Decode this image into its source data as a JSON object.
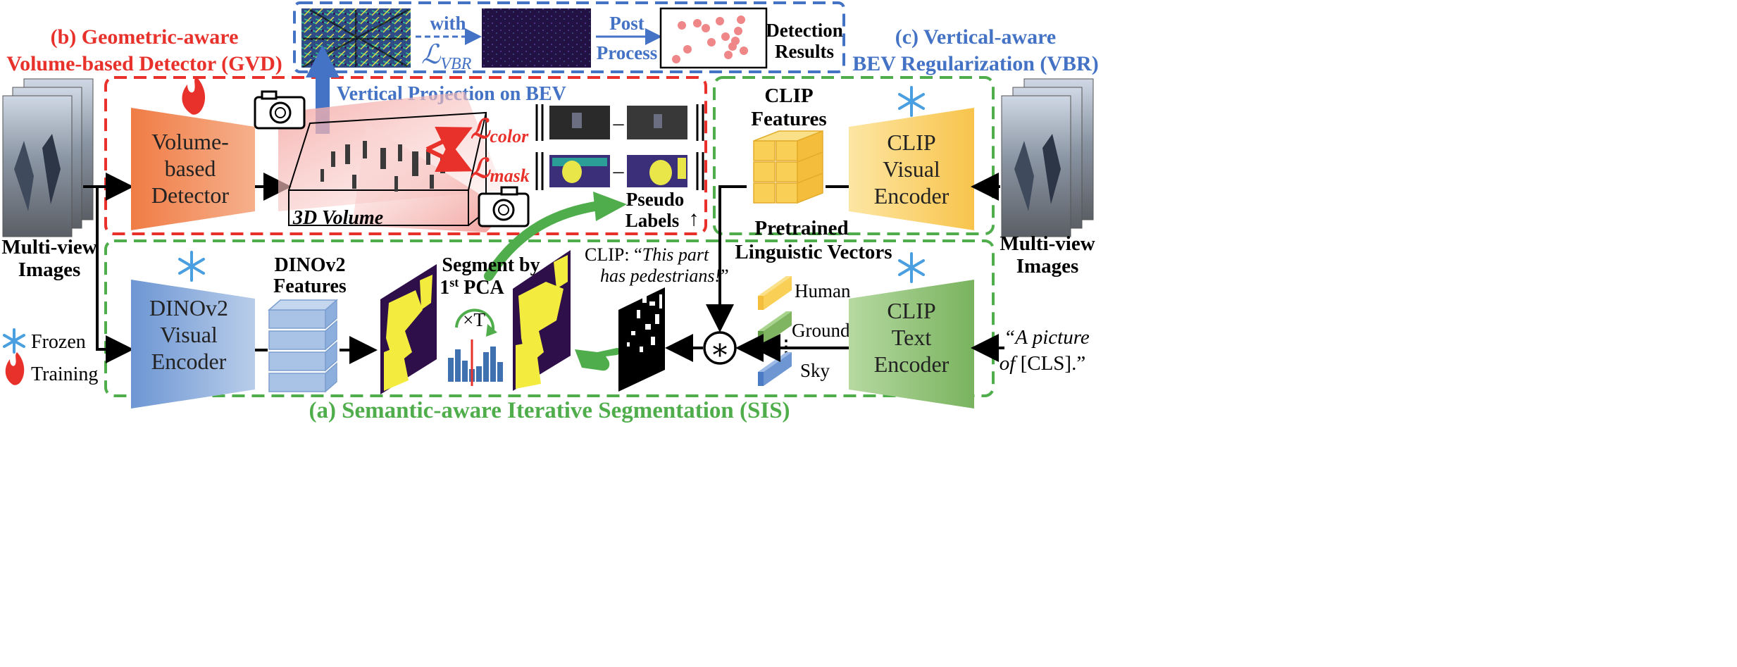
{
  "sections": {
    "gvd_title_line1": "(b) Geometric-aware",
    "gvd_title_line2": "Volume-based Detector (GVD)",
    "vbr_title_line1": "(c) Vertical-aware",
    "vbr_title_line2": "BEV Regularization (VBR)",
    "sis_title": "(a) Semantic-aware Iterative Segmentation (SIS)"
  },
  "top_pipeline": {
    "with_label": "with",
    "loss_vbr_symbol": "ℒ",
    "loss_vbr_sub": "VBR",
    "post_label": "Post",
    "process_label": "Process",
    "detection_line1": "Detection",
    "detection_line2": "Results",
    "vertical_projection": "Vertical Projection on BEV"
  },
  "gvd": {
    "detector_line1": "Volume-",
    "detector_line2": "based",
    "detector_line3": "Detector",
    "volume_label": "3D Volume",
    "loss_color_symbol": "ℒ",
    "loss_color_sub": "color",
    "loss_mask_symbol": "ℒ",
    "loss_mask_sub": "mask",
    "minus": "–",
    "pseudo_line1": "Pseudo",
    "pseudo_line2": "Labels",
    "up_arrow": "↑"
  },
  "inputs": {
    "left_line1": "Multi-view",
    "left_line2": "Images",
    "right_line1": "Multi-view",
    "right_line2": "Images",
    "prompt_line1": "“A picture",
    "prompt_of": "of ",
    "prompt_cls": "[CLS].”"
  },
  "legend": {
    "frozen": "Frozen",
    "training": "Training"
  },
  "sis": {
    "dino_line1": "DINOv2",
    "dino_line2": "Visual",
    "dino_line3": "Encoder",
    "dino_feat_line1": "DINOv2",
    "dino_feat_line2": "Features",
    "segment_line1": "Segment by",
    "segment_line2_num": "1",
    "segment_line2_sup": "st",
    "segment_line2_rest": " PCA",
    "iter_label": "×T",
    "clip_quote_prefix": "CLIP: “",
    "clip_quote_line1": "This part",
    "clip_quote_line2": "has pedestrians!",
    "clip_quote_suffix": "”",
    "star_symbol": "∗"
  },
  "vbr_clip": {
    "clip_features_line1": "CLIP",
    "clip_features_line2": "Features",
    "visual_line1": "CLIP",
    "visual_line2": "Visual",
    "visual_line3": "Encoder",
    "text_line1": "CLIP",
    "text_line2": "Text",
    "text_line3": "Encoder",
    "pretrained_line1": "Pretrained",
    "pretrained_line2": "Linguistic Vectors",
    "vec_human": "Human",
    "vec_ground": "Ground",
    "vec_sky": "Sky",
    "vec_dots": "⋮"
  },
  "colors": {
    "red": "#e8312b",
    "blue": "#4472c4",
    "green": "#4fae4b",
    "orange_box": "#ee8a5a",
    "blue_box": "#7ea3d8",
    "yellow_box": "#f9cf6a",
    "green_box": "#8fc07a"
  }
}
